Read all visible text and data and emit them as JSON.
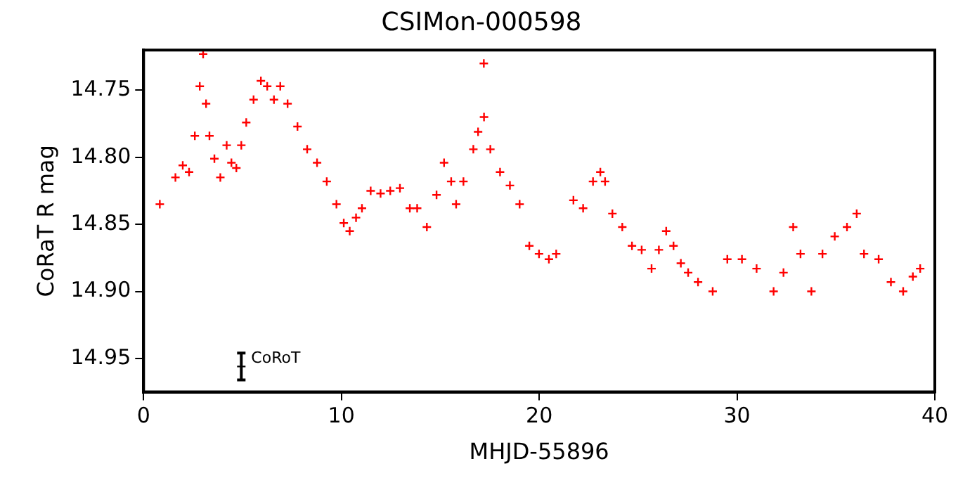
{
  "chart_data": {
    "type": "scatter",
    "title": "CSIMon-000598",
    "xlabel": "MHJD-55896",
    "ylabel": "CoRaT R mag",
    "xlim": [
      0,
      40
    ],
    "xticks": [
      0,
      10,
      20,
      30,
      40
    ],
    "ylim": [
      14.975,
      14.72
    ],
    "yticks": [
      {
        "value": 14.75,
        "label": "14.75"
      },
      {
        "value": 14.8,
        "label": "14.80"
      },
      {
        "value": 14.85,
        "label": "14.85"
      },
      {
        "value": 14.9,
        "label": "14.90"
      },
      {
        "value": 14.95,
        "label": "14.95"
      }
    ],
    "marker": "cross",
    "annotations": [
      {
        "text": "CoRoT",
        "x": 4.94,
        "y": 14.956
      }
    ],
    "series": [
      {
        "color": "#ff0000",
        "x": [
          0.82,
          1.61,
          1.98,
          2.3,
          2.59,
          2.84,
          3.01,
          3.16,
          3.33,
          3.58,
          3.88,
          4.2,
          4.44,
          4.69,
          4.94,
          5.19,
          5.56,
          5.93,
          6.25,
          6.59,
          6.91,
          7.28,
          7.78,
          8.27,
          8.77,
          9.26,
          9.75,
          10.12,
          10.42,
          10.74,
          11.04,
          11.48,
          11.98,
          12.47,
          12.96,
          13.46,
          13.83,
          14.32,
          14.81,
          15.19,
          15.55,
          15.8,
          16.17,
          16.67,
          16.91,
          17.2,
          17.21,
          17.53,
          18.02,
          18.52,
          19.01,
          19.5,
          19.99,
          20.49,
          20.86,
          21.3,
          21.73,
          22.22,
          22.72,
          23.09,
          23.33,
          23.7,
          24.2,
          24.69,
          25.18,
          25.68,
          26.05,
          26.42,
          26.79,
          27.16,
          27.53,
          28.03,
          28.77,
          29.51,
          30.25,
          30.99,
          31.85,
          32.35,
          32.84,
          33.21,
          33.76,
          34.32,
          34.94,
          35.56,
          36.05,
          36.42,
          37.16,
          37.78,
          38.4,
          38.89,
          39.26
        ],
        "values": [
          14.835,
          14.815,
          14.806,
          14.811,
          14.784,
          14.747,
          14.723,
          14.76,
          14.784,
          14.801,
          14.815,
          14.791,
          14.804,
          14.808,
          14.791,
          14.774,
          14.757,
          14.743,
          14.747,
          14.757,
          14.747,
          14.76,
          14.777,
          14.794,
          14.804,
          14.818,
          14.835,
          14.849,
          14.855,
          14.845,
          14.838,
          14.825,
          14.827,
          14.825,
          14.823,
          14.838,
          14.838,
          14.852,
          14.828,
          14.804,
          14.818,
          14.835,
          14.818,
          14.794,
          14.781,
          14.73,
          14.77,
          14.794,
          14.811,
          14.821,
          14.835,
          14.866,
          14.872,
          14.876,
          14.872,
          null,
          14.832,
          14.838,
          14.818,
          14.811,
          14.818,
          14.842,
          14.852,
          14.866,
          14.869,
          14.883,
          14.869,
          14.855,
          14.866,
          14.879,
          14.886,
          14.893,
          14.9,
          14.876,
          14.876,
          14.883,
          14.9,
          14.886,
          14.852,
          14.872,
          14.9,
          14.872,
          14.859,
          14.852,
          14.842,
          14.872,
          14.876,
          14.893,
          14.9,
          14.889,
          14.883
        ]
      },
      {
        "color": "#000000",
        "x": [
          4.94
        ],
        "values": [
          14.956
        ],
        "errors": [
          0.01
        ]
      }
    ]
  }
}
